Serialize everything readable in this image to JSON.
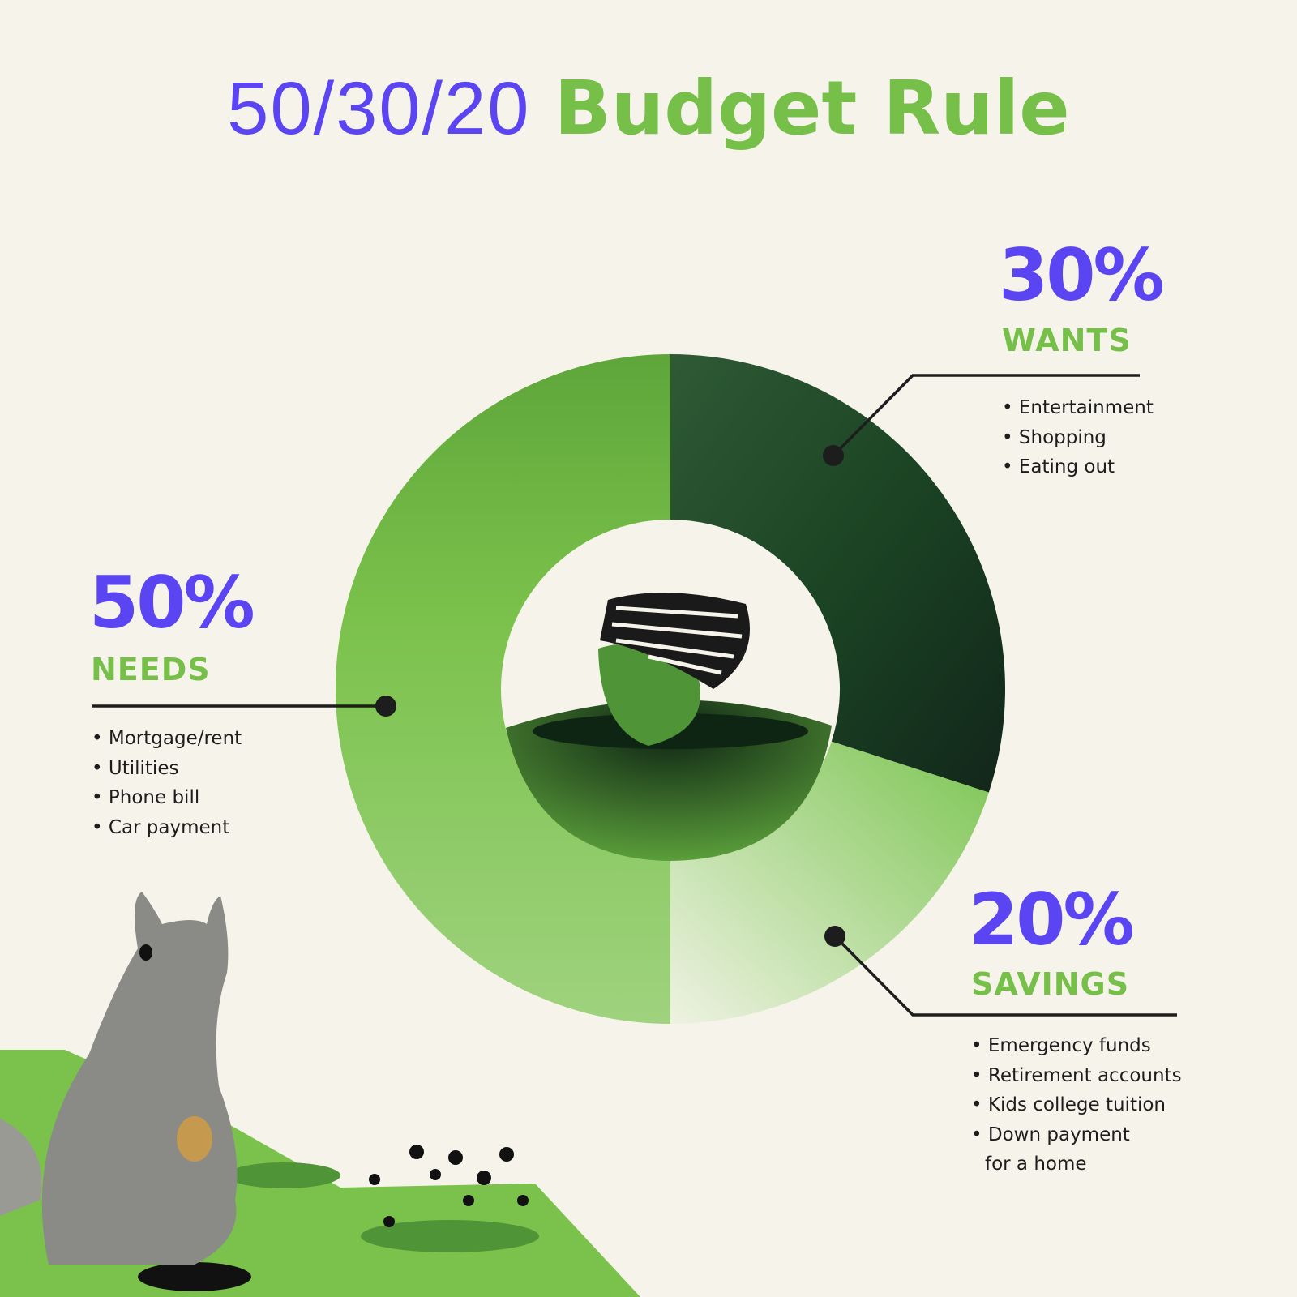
{
  "title": {
    "numbers": "50/30/20",
    "words": "Budget Rule"
  },
  "colors": {
    "purple": "#5b45f2",
    "green": "#76c04a",
    "needs": "#79c14b",
    "wants": "#1b4424",
    "savings": "#bfe2a5"
  },
  "chart_data": {
    "type": "pie",
    "donut": true,
    "categories": [
      "WANTS",
      "SAVINGS",
      "NEEDS"
    ],
    "values": [
      30,
      20,
      50
    ],
    "labels": [
      "30%",
      "20%",
      "50%"
    ]
  },
  "needs": {
    "percent": "50%",
    "label": "NEEDS",
    "items": [
      "Mortgage/rent",
      "Utilities",
      "Phone bill",
      "Car payment"
    ]
  },
  "wants": {
    "percent": "30%",
    "label": "WANTS",
    "items": [
      "Entertainment",
      "Shopping",
      "Eating out"
    ]
  },
  "savings": {
    "percent": "20%",
    "label": "SAVINGS",
    "items": [
      "Emergency funds",
      "Retirement accounts",
      "Kids college tuition",
      "Down payment",
      "for a home"
    ]
  }
}
